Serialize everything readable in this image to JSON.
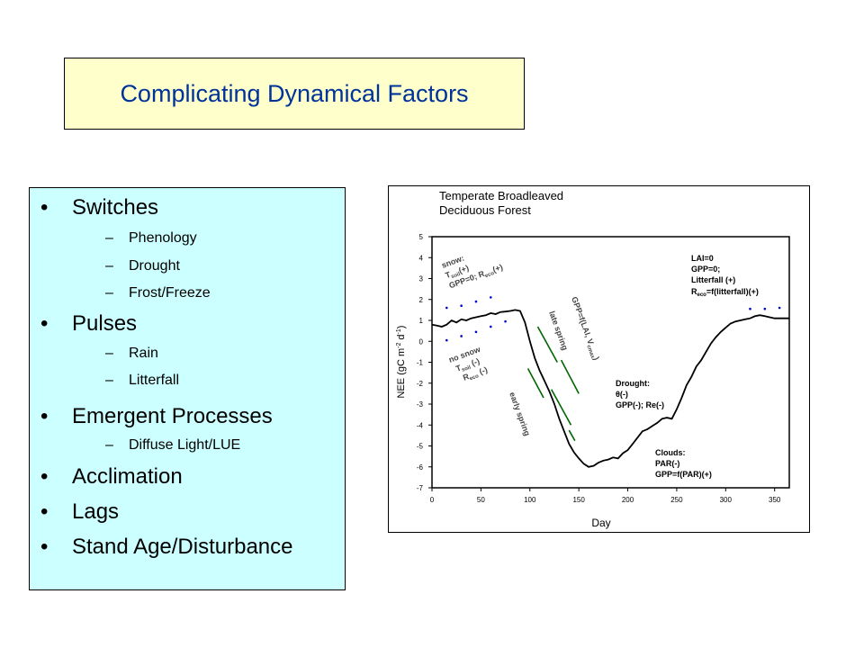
{
  "slide": {
    "title": "Complicating Dynamical Factors",
    "bullets": [
      {
        "label": "Switches",
        "subitems": [
          "Phenology",
          "Drought",
          "Frost/Freeze"
        ]
      },
      {
        "label": "Pulses",
        "subitems": [
          "Rain",
          "Litterfall"
        ]
      },
      {
        "label": "Emergent Processes",
        "subitems": [
          "Diffuse Light/LUE"
        ]
      },
      {
        "label": "Acclimation",
        "subitems": []
      },
      {
        "label": "Lags",
        "subitems": []
      },
      {
        "label": "Stand Age/Disturbance",
        "subitems": []
      }
    ]
  },
  "chart_data": {
    "type": "line",
    "title": "Temperate Broadleaved Deciduous Forest",
    "title_lines": [
      "Temperate Broadleaved",
      "Deciduous Forest"
    ],
    "xlabel": "Day",
    "ylabel": "NEE (gC m-2 d-1)",
    "xlim": [
      0,
      365
    ],
    "ylim": [
      -7,
      5
    ],
    "xticks": [
      0,
      50,
      100,
      150,
      200,
      250,
      300,
      350
    ],
    "yticks": [
      5,
      4,
      3,
      2,
      1,
      0,
      -1,
      -2,
      -3,
      -4,
      -5,
      -6,
      -7
    ],
    "grid": false,
    "series": [
      {
        "x": [
          0,
          5,
          10,
          15,
          20,
          25,
          30,
          35,
          40,
          45,
          50,
          55,
          60,
          65,
          70,
          75,
          80,
          85,
          90,
          95,
          100,
          105,
          110,
          115,
          120,
          125,
          130,
          135,
          140,
          145,
          150,
          155,
          160,
          165,
          170,
          175,
          180,
          185,
          190,
          195,
          200,
          205,
          210,
          215,
          220,
          225,
          230,
          235,
          240,
          245,
          250,
          255,
          260,
          265,
          270,
          275,
          280,
          285,
          290,
          295,
          300,
          305,
          310,
          315,
          320,
          325,
          330,
          335,
          340,
          345,
          350,
          355,
          365
        ],
        "y": [
          0.8,
          0.75,
          0.7,
          0.8,
          1.0,
          0.9,
          1.05,
          1.0,
          1.1,
          1.15,
          1.2,
          1.25,
          1.35,
          1.3,
          1.4,
          1.42,
          1.45,
          1.5,
          1.45,
          0.9,
          0.0,
          -0.8,
          -1.4,
          -1.9,
          -2.4,
          -3.0,
          -3.7,
          -4.3,
          -4.9,
          -5.3,
          -5.6,
          -5.85,
          -6.0,
          -5.95,
          -5.8,
          -5.7,
          -5.65,
          -5.55,
          -5.6,
          -5.35,
          -5.2,
          -4.9,
          -4.6,
          -4.3,
          -4.2,
          -4.05,
          -3.9,
          -3.7,
          -3.65,
          -3.7,
          -3.25,
          -2.7,
          -2.1,
          -1.7,
          -1.2,
          -0.9,
          -0.5,
          -0.1,
          0.2,
          0.45,
          0.65,
          0.85,
          0.95,
          1.0,
          1.05,
          1.1,
          1.2,
          1.25,
          1.2,
          1.15,
          1.1,
          1.1,
          1.1
        ]
      }
    ],
    "markers": {
      "snow_dots": {
        "x": [
          15,
          30,
          45,
          60
        ],
        "y": [
          1.6,
          1.7,
          1.9,
          2.1
        ]
      },
      "no_snow_dots": {
        "x": [
          15,
          30,
          45,
          60,
          75
        ],
        "y": [
          0.05,
          0.25,
          0.45,
          0.7,
          0.95
        ]
      },
      "clouds_dots": {
        "x": [
          325,
          340,
          355
        ],
        "y": [
          1.55,
          1.55,
          1.6
        ]
      }
    },
    "phenology_segments": [
      {
        "x": [
          98,
          114
        ],
        "y": [
          -1.3,
          -2.7
        ]
      },
      {
        "x": [
          108,
          128
        ],
        "y": [
          0.7,
          -1.0
        ]
      },
      {
        "x": [
          122,
          142
        ],
        "y": [
          -2.3,
          -4.0
        ]
      },
      {
        "x": [
          132,
          150
        ],
        "y": [
          -0.9,
          -2.5
        ]
      },
      {
        "x": [
          140,
          146
        ],
        "y": [
          -4.25,
          -4.75
        ]
      }
    ],
    "annotations": {
      "snow": {
        "line1": "snow:",
        "tsoil_main": "T",
        "tsoil_sub": "soil",
        "tsoil_tail": "(+)",
        "gpp_main": "GPP=0; R",
        "gpp_sub": "eco",
        "gpp_tail": "(+)"
      },
      "no_snow": {
        "line1": "no snow",
        "tsoil_main": "T",
        "tsoil_sub": "soil",
        "tsoil_tail": " (-)",
        "reco_main": "R",
        "reco_sub": "eco",
        "reco_tail": " (-)"
      },
      "early_spring": "early spring",
      "late_spring": "late spring",
      "gpp_f": {
        "main": "GPP=f(LAI, V",
        "sub": "cmax",
        "tail": ")"
      },
      "lai": {
        "line1": "LAI=0",
        "line2": "GPP=0;",
        "line3": "Litterfall (+)",
        "r_main": "R",
        "r_sub": "eco",
        "r_tail": "=f(litterfall)(+)"
      },
      "drought": {
        "line1": "Drought:",
        "line2": "θ(-)",
        "line3": "GPP(-); Re(-)"
      },
      "clouds": {
        "line1": "Clouds:",
        "line2": "PAR(-)",
        "line3": "GPP=f(PAR)(+)"
      }
    },
    "colors": {
      "line": "#000000",
      "segments": "#006600",
      "dots": "#0000cc",
      "annotation": "#444444"
    }
  }
}
